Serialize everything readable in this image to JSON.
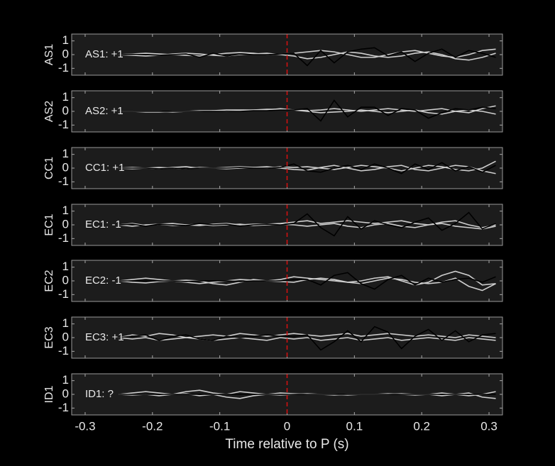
{
  "chart_data": [
    {
      "type": "line",
      "ylabel": "AS1",
      "annotation": "AS1: +1",
      "annotation_color": "#c41414",
      "xlim": [
        -0.32,
        0.32
      ],
      "ylim": [
        -1.5,
        1.5
      ],
      "yticks": [
        -1,
        0,
        1
      ],
      "vline": 0,
      "vline_color": "#d01010",
      "x": [
        -0.25,
        -0.23,
        -0.21,
        -0.19,
        -0.17,
        -0.15,
        -0.13,
        -0.11,
        -0.09,
        -0.07,
        -0.05,
        -0.03,
        -0.01,
        0.01,
        0.03,
        0.05,
        0.07,
        0.09,
        0.11,
        0.13,
        0.15,
        0.17,
        0.19,
        0.21,
        0.23,
        0.25,
        0.27,
        0.29,
        0.31
      ],
      "series": [
        {
          "color": "#cfcfcf",
          "values": [
            0,
            0.05,
            0.1,
            0.05,
            0,
            -0.05,
            -0.1,
            0,
            0.1,
            0.15,
            0.1,
            0,
            0.05,
            0.1,
            0.2,
            0.3,
            0.2,
            0,
            -0.2,
            -0.2,
            0,
            0.2,
            0.3,
            0.1,
            -0.1,
            -0.2,
            0,
            0.3,
            0.4
          ]
        },
        {
          "color": "#cfcfcf",
          "values": [
            0,
            -0.05,
            -0.1,
            -0.05,
            0.05,
            0.1,
            0.05,
            -0.05,
            -0.1,
            0,
            0.05,
            0.1,
            0,
            -0.1,
            -0.3,
            -0.2,
            0,
            0.2,
            0.1,
            -0.1,
            -0.2,
            -0.1,
            0.1,
            0.2,
            0,
            -0.3,
            -0.4,
            -0.2,
            0.1
          ]
        },
        {
          "color": "#000000",
          "values": [
            0,
            0.02,
            0,
            -0.05,
            0,
            0.05,
            -0.2,
            0.1,
            -0.1,
            0.05,
            0,
            0,
            0.05,
            0.1,
            -0.8,
            0.3,
            -0.6,
            0.2,
            0.4,
            0.5,
            -0.1,
            0.2,
            -0.5,
            0.1,
            0.4,
            -0.2,
            0.3,
            0.1,
            -0.2
          ]
        }
      ]
    },
    {
      "type": "line",
      "ylabel": "AS2",
      "annotation": "AS2: +1",
      "annotation_color": "#c41414",
      "xlim": [
        -0.32,
        0.32
      ],
      "ylim": [
        -1.5,
        1.5
      ],
      "yticks": [
        -1,
        0,
        1
      ],
      "vline": 0,
      "vline_color": "#d01010",
      "x": [
        -0.25,
        -0.23,
        -0.21,
        -0.19,
        -0.17,
        -0.15,
        -0.13,
        -0.11,
        -0.09,
        -0.07,
        -0.05,
        -0.03,
        -0.01,
        0.01,
        0.03,
        0.05,
        0.07,
        0.09,
        0.11,
        0.13,
        0.15,
        0.17,
        0.19,
        0.21,
        0.23,
        0.25,
        0.27,
        0.29,
        0.31
      ],
      "series": [
        {
          "color": "#cfcfcf",
          "values": [
            0,
            0,
            -0.05,
            -0.05,
            0,
            0,
            0.05,
            0.05,
            0.1,
            0.1,
            0.1,
            0.15,
            0.15,
            0.1,
            0.05,
            0.1,
            0.2,
            0.1,
            0,
            0.1,
            0.2,
            0.1,
            0,
            0.1,
            0.2,
            0,
            -0.1,
            0.2,
            0.4
          ]
        },
        {
          "color": "#cfcfcf",
          "values": [
            0,
            0,
            0,
            0,
            -0.05,
            0,
            0,
            0.05,
            0,
            0.05,
            0.1,
            0.1,
            0.2,
            0.1,
            0,
            -0.1,
            -0.05,
            0,
            0.1,
            0,
            -0.1,
            0,
            0.1,
            -0.1,
            -0.2,
            0,
            0.1,
            0,
            -0.2
          ]
        },
        {
          "color": "#000000",
          "values": [
            0,
            0,
            0,
            0,
            0,
            0,
            0,
            0,
            0,
            0,
            0.05,
            0.05,
            0.1,
            0.1,
            0.2,
            -0.7,
            0.8,
            -0.4,
            0.3,
            0.3,
            -0.3,
            0.2,
            0.1,
            -0.5,
            -0.1,
            0.2,
            0.1,
            0.3,
            0.2
          ]
        }
      ]
    },
    {
      "type": "line",
      "ylabel": "CC1",
      "annotation": "CC1: +1",
      "annotation_color": "#c41414",
      "xlim": [
        -0.32,
        0.32
      ],
      "ylim": [
        -1.5,
        1.5
      ],
      "yticks": [
        -1,
        0,
        1
      ],
      "vline": 0,
      "vline_color": "#d01010",
      "x": [
        -0.25,
        -0.23,
        -0.21,
        -0.19,
        -0.17,
        -0.15,
        -0.13,
        -0.11,
        -0.09,
        -0.07,
        -0.05,
        -0.03,
        -0.01,
        0.01,
        0.03,
        0.05,
        0.07,
        0.09,
        0.11,
        0.13,
        0.15,
        0.17,
        0.19,
        0.21,
        0.23,
        0.25,
        0.27,
        0.29,
        0.31
      ],
      "series": [
        {
          "color": "#cfcfcf",
          "values": [
            0,
            0.05,
            0,
            -0.05,
            0.05,
            0.1,
            0,
            0,
            0.05,
            0.1,
            0.05,
            0,
            0.1,
            0.05,
            0.1,
            0,
            -0.1,
            0.05,
            0.2,
            0.1,
            0,
            -0.2,
            0,
            0.2,
            0.1,
            -0.1,
            -0.2,
            0,
            0.5
          ]
        },
        {
          "color": "#cfcfcf",
          "values": [
            0,
            -0.05,
            0,
            0.05,
            0,
            -0.05,
            0.05,
            0,
            -0.05,
            0,
            0.05,
            0.1,
            0,
            -0.1,
            -0.15,
            0.05,
            0.2,
            0,
            -0.2,
            -0.1,
            0.1,
            0.2,
            -0.1,
            -0.2,
            0,
            0.2,
            0.1,
            -0.2,
            -0.4
          ]
        },
        {
          "color": "#000000",
          "values": [
            0,
            0,
            0,
            -0.05,
            0,
            -0.05,
            0,
            0,
            0,
            0.05,
            0,
            0,
            0.05,
            0.3,
            -0.2,
            -0.3,
            0,
            0.2,
            -0.1,
            0.3,
            0,
            -0.4,
            0.3,
            -0.1,
            0.4,
            -0.2,
            0.1,
            -0.3,
            0.2
          ]
        }
      ]
    },
    {
      "type": "line",
      "ylabel": "EC1",
      "annotation": "EC1: -1",
      "annotation_color": "#1c1ca8",
      "xlim": [
        -0.32,
        0.32
      ],
      "ylim": [
        -1.5,
        1.5
      ],
      "yticks": [
        -1,
        0,
        1
      ],
      "vline": 0,
      "vline_color": "#d01010",
      "x": [
        -0.25,
        -0.23,
        -0.21,
        -0.19,
        -0.17,
        -0.15,
        -0.13,
        -0.11,
        -0.09,
        -0.07,
        -0.05,
        -0.03,
        -0.01,
        0.01,
        0.03,
        0.05,
        0.07,
        0.09,
        0.11,
        0.13,
        0.15,
        0.17,
        0.19,
        0.21,
        0.23,
        0.25,
        0.27,
        0.29,
        0.31
      ],
      "series": [
        {
          "color": "#cfcfcf",
          "values": [
            0,
            0.1,
            -0.05,
            0.05,
            0.1,
            0,
            -0.05,
            0.05,
            0.1,
            0,
            0.05,
            0.05,
            0.1,
            0.2,
            0.3,
            0.1,
            0.2,
            0.3,
            0.2,
            0.1,
            0.2,
            0.3,
            0.1,
            0,
            0.2,
            0.3,
            0,
            -0.2,
            0
          ]
        },
        {
          "color": "#cfcfcf",
          "values": [
            0,
            -0.1,
            0,
            0.05,
            -0.05,
            0,
            0.05,
            -0.05,
            0,
            0.05,
            -0.05,
            0,
            0.05,
            0,
            -0.1,
            0,
            0.1,
            -0.1,
            -0.2,
            0,
            0.1,
            -0.1,
            -0.2,
            0,
            0.1,
            -0.1,
            -0.2,
            -0.3,
            -0.1
          ]
        },
        {
          "color": "#000000",
          "values": [
            0,
            0.05,
            -0.1,
            0.05,
            0,
            -0.05,
            0.1,
            0,
            0.05,
            -0.1,
            0,
            0.05,
            0,
            0.1,
            0.8,
            -0.2,
            -0.8,
            0.6,
            -0.3,
            0.3,
            0,
            -0.2,
            0.2,
            0.5,
            -0.4,
            0.1,
            0.9,
            -0.3,
            0.1
          ]
        }
      ]
    },
    {
      "type": "line",
      "ylabel": "EC2",
      "annotation": "EC2: -1",
      "annotation_color": "#1c1ca8",
      "xlim": [
        -0.32,
        0.32
      ],
      "ylim": [
        -1.5,
        1.5
      ],
      "yticks": [
        -1,
        0,
        1
      ],
      "vline": 0,
      "vline_color": "#d01010",
      "x": [
        -0.25,
        -0.23,
        -0.21,
        -0.19,
        -0.17,
        -0.15,
        -0.13,
        -0.11,
        -0.09,
        -0.07,
        -0.05,
        -0.03,
        -0.01,
        0.01,
        0.03,
        0.05,
        0.07,
        0.09,
        0.11,
        0.13,
        0.15,
        0.17,
        0.19,
        0.21,
        0.23,
        0.25,
        0.27,
        0.29,
        0.31
      ],
      "series": [
        {
          "color": "#cfcfcf",
          "values": [
            0,
            0.1,
            0.2,
            0.1,
            0,
            -0.1,
            -0.2,
            -0.1,
            0,
            0.1,
            0.05,
            0,
            0.1,
            0.3,
            0.2,
            0.1,
            0,
            -0.1,
            0,
            0.2,
            0.3,
            0,
            -0.3,
            -0.1,
            0.4,
            0.7,
            0.4,
            -0.3,
            -0.2
          ]
        },
        {
          "color": "#cfcfcf",
          "values": [
            0,
            -0.1,
            -0.15,
            -0.05,
            0,
            0.05,
            0,
            -0.2,
            -0.3,
            -0.1,
            0.1,
            0,
            -0.05,
            -0.1,
            0.1,
            0.2,
            0.1,
            -0.1,
            -0.2,
            0,
            0.2,
            0.1,
            -0.1,
            -0.2,
            -0.1,
            0.2,
            -0.4,
            -0.7,
            -0.2
          ]
        },
        {
          "color": "#000000",
          "values": [
            0,
            0,
            0,
            0,
            0,
            -0.05,
            0,
            0,
            0,
            -0.05,
            0,
            0,
            0,
            0.1,
            0.1,
            -0.3,
            0.4,
            0.6,
            -0.2,
            -0.6,
            0.1,
            0.4,
            -0.3,
            0.2,
            -0.1,
            0.1,
            0.2,
            -0.1,
            0.3
          ]
        }
      ]
    },
    {
      "type": "line",
      "ylabel": "EC3",
      "annotation": "EC3: +1",
      "annotation_color": "#c41414",
      "xlim": [
        -0.32,
        0.32
      ],
      "ylim": [
        -1.5,
        1.5
      ],
      "yticks": [
        -1,
        0,
        1
      ],
      "vline": 0,
      "vline_color": "#d01010",
      "x": [
        -0.25,
        -0.23,
        -0.21,
        -0.19,
        -0.17,
        -0.15,
        -0.13,
        -0.11,
        -0.09,
        -0.07,
        -0.05,
        -0.03,
        -0.01,
        0.01,
        0.03,
        0.05,
        0.07,
        0.09,
        0.11,
        0.13,
        0.15,
        0.17,
        0.19,
        0.21,
        0.23,
        0.25,
        0.27,
        0.29,
        0.31
      ],
      "series": [
        {
          "color": "#cfcfcf",
          "values": [
            0,
            0.2,
            0.1,
            0.3,
            0.2,
            0,
            0.1,
            0.2,
            0.1,
            0.3,
            0.2,
            0.1,
            0.2,
            0.3,
            0.2,
            0.1,
            0.2,
            0.3,
            0.1,
            0.2,
            0.3,
            0.2,
            0.1,
            0.2,
            0.1,
            0,
            0.2,
            0.1,
            0
          ]
        },
        {
          "color": "#cfcfcf",
          "values": [
            0,
            -0.1,
            0,
            -0.2,
            -0.1,
            0,
            -0.1,
            -0.2,
            -0.1,
            0,
            -0.1,
            -0.2,
            0,
            -0.1,
            0,
            -0.2,
            -0.1,
            0,
            -0.2,
            -0.1,
            0,
            -0.2,
            -0.1,
            0,
            -0.1,
            -0.2,
            0,
            -0.1,
            -0.2
          ]
        },
        {
          "color": "#000000",
          "values": [
            0,
            0.1,
            0.2,
            -0.2,
            0.1,
            0.2,
            -0.1,
            -0.2,
            0.1,
            0,
            0.1,
            0.2,
            0.1,
            0.1,
            0.2,
            -0.9,
            -0.3,
            0.5,
            -0.3,
            0.8,
            0.4,
            -0.8,
            0.1,
            0.6,
            -0.2,
            0.5,
            -0.3,
            0.2,
            0.3
          ]
        }
      ]
    },
    {
      "type": "line",
      "ylabel": "ID1",
      "annotation": "ID1: ?",
      "annotation_color": "#8c8c8c",
      "xlim": [
        -0.32,
        0.32
      ],
      "ylim": [
        -1.5,
        1.5
      ],
      "yticks": [
        -1,
        0,
        1
      ],
      "vline": 0,
      "vline_color": "#d01010",
      "xticks": [
        -0.3,
        -0.2,
        -0.1,
        0,
        0.1,
        0.2,
        0.3
      ],
      "xlabel": "Time relative to P (s)",
      "x": [
        -0.25,
        -0.23,
        -0.21,
        -0.19,
        -0.17,
        -0.15,
        -0.13,
        -0.11,
        -0.09,
        -0.07,
        -0.05,
        -0.03,
        -0.01,
        0.01,
        0.03,
        0.05,
        0.07,
        0.09,
        0.11,
        0.13,
        0.15,
        0.17,
        0.19,
        0.21,
        0.23,
        0.25,
        0.27,
        0.29,
        0.31
      ],
      "series": [
        {
          "color": "#cfcfcf",
          "values": [
            0,
            0.1,
            0.2,
            0.1,
            0,
            0.2,
            0.3,
            0.1,
            0,
            0.2,
            0.1,
            0,
            0.1,
            0.05,
            0,
            0,
            -0.05,
            0,
            0,
            0,
            0.05,
            0,
            -0.05,
            0,
            0.1,
            0,
            -0.1,
            0,
            0.2
          ]
        },
        {
          "color": "#cfcfcf",
          "values": [
            0,
            -0.05,
            0,
            -0.1,
            0,
            0.05,
            -0.1,
            0,
            -0.2,
            -0.3,
            -0.1,
            0,
            -0.05,
            0,
            0.05,
            0,
            0,
            -0.05,
            0,
            0,
            0,
            0.05,
            0,
            0,
            -0.1,
            0,
            0.1,
            -0.2,
            -0.3
          ]
        },
        {
          "color": "#000000",
          "values": [
            0,
            0,
            0,
            0,
            0,
            0,
            0,
            0,
            0,
            0,
            0,
            0,
            0,
            0,
            0,
            0,
            0,
            0,
            0,
            0,
            0,
            0,
            0,
            0,
            0,
            0,
            0,
            0,
            0
          ]
        }
      ]
    }
  ]
}
